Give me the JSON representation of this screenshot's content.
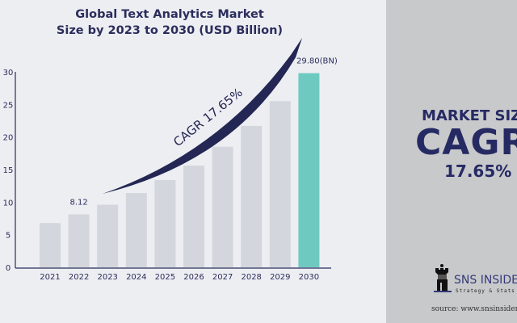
{
  "chart_data": {
    "type": "bar",
    "title": "Global Text Analytics Market Size by 2023 to 2030 (USD Billion)",
    "title_lines": [
      "Global Text Analytics Market",
      "Size by 2023 to 2030 (USD Billion)"
    ],
    "categories": [
      "2021",
      "2022",
      "2023",
      "2024",
      "2025",
      "2026",
      "2027",
      "2028",
      "2029",
      "2030"
    ],
    "values": [
      6.8,
      8.12,
      9.6,
      11.4,
      13.4,
      15.6,
      18.5,
      21.7,
      25.5,
      29.8
    ],
    "yticks": [
      "0",
      "5",
      "10",
      "15",
      "20",
      "25",
      "30"
    ],
    "ylim": [
      0,
      30
    ],
    "xlabel": "",
    "ylabel": "",
    "data_labels": {
      "2022": "8.12",
      "2030": "29.80(BN)"
    },
    "annotation": "CAGR 17.65%",
    "colors": {
      "bar": "#d3d6dc",
      "highlight": "#6ec9c1",
      "arrow": "#242654",
      "text": "#2b2d5c"
    }
  },
  "panel": {
    "line1": "MARKET SIZE",
    "line2": "CAGR",
    "line3": "17.65%",
    "brand": "SNS INSIDER",
    "tagline": "Strategy & Stats",
    "source": "source: www.snsinsider.com"
  }
}
